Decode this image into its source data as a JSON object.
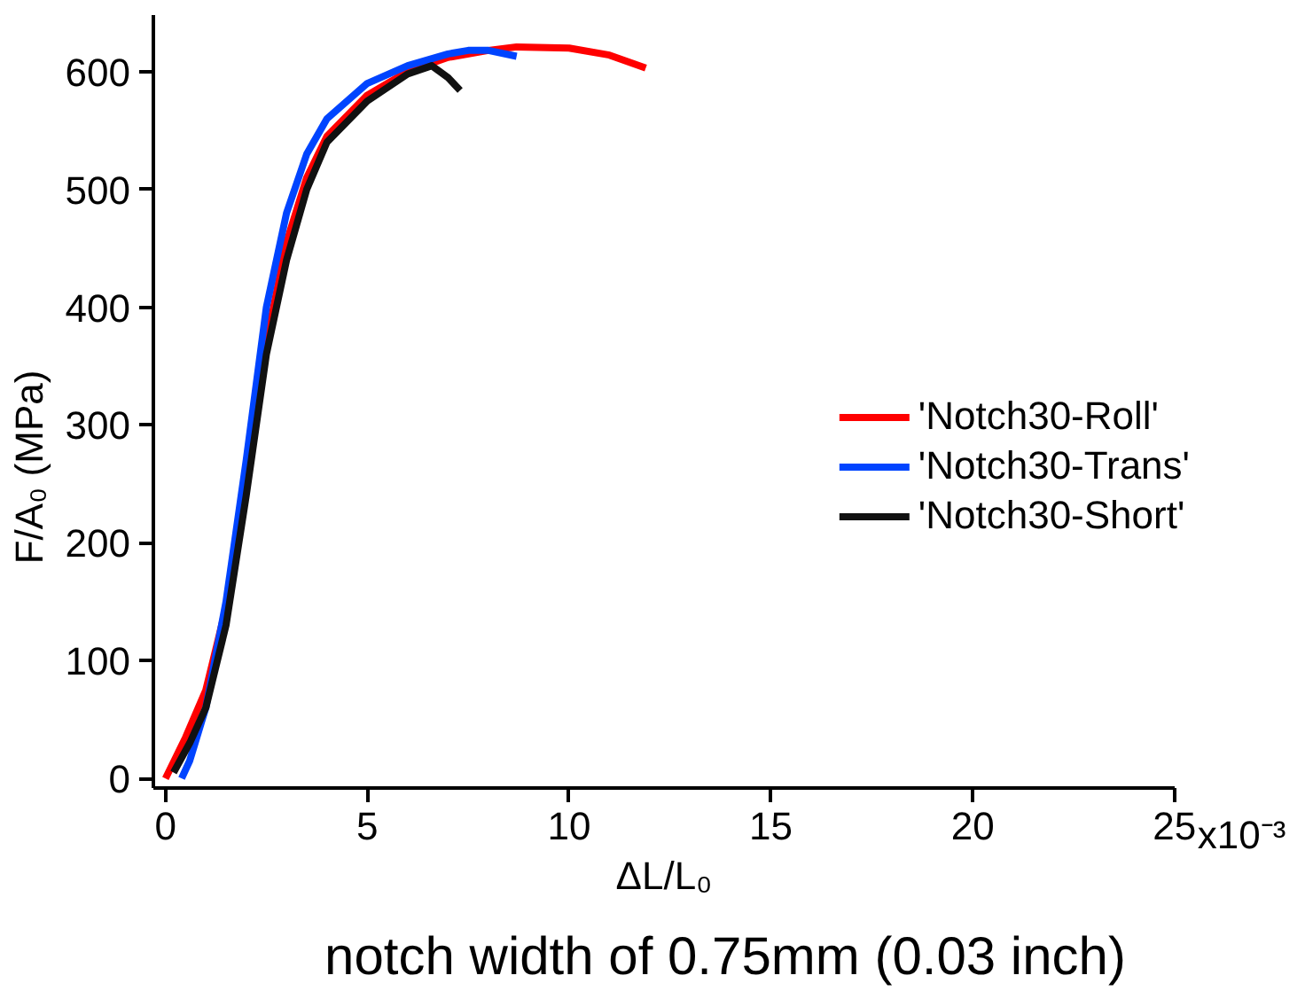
{
  "chart_data": {
    "type": "line",
    "xlabel": "ΔL/L₀",
    "ylabel": "F/A₀ (MPa)",
    "annotations": [
      "notch width of 0.75mm (0.03 inch)",
      "x10⁻³"
    ],
    "xlim": [
      -0.3,
      25
    ],
    "ylim": [
      -8,
      648
    ],
    "xticks": [
      0,
      5,
      10,
      15,
      20,
      25
    ],
    "yticks": [
      0,
      100,
      200,
      300,
      400,
      500,
      600
    ],
    "grid": false,
    "legend": "right",
    "line_style": "solid",
    "marker": "none",
    "series": [
      {
        "name": "'Notch30-Roll'",
        "color": "#ff0000",
        "x": [
          0,
          0.5,
          1,
          1.5,
          2,
          2.5,
          3,
          3.5,
          4,
          5,
          6,
          7,
          8,
          8.7,
          10,
          11,
          11.9
        ],
        "values": [
          0,
          35,
          75,
          145,
          250,
          370,
          455,
          510,
          545,
          580,
          600,
          612,
          618,
          621,
          620,
          614,
          603
        ]
      },
      {
        "name": "'Notch30-Trans'",
        "color": "#0044ff",
        "x": [
          0.4,
          0.6,
          1,
          1.5,
          2,
          2.5,
          3,
          3.5,
          4,
          5,
          6,
          7,
          7.5,
          8,
          8.7
        ],
        "values": [
          0,
          15,
          60,
          150,
          270,
          400,
          480,
          530,
          560,
          590,
          605,
          615,
          618,
          618,
          613
        ]
      },
      {
        "name": "'Notch30-Short'",
        "color": "#111111",
        "x": [
          0.2,
          0.6,
          1,
          1.5,
          2,
          2.5,
          3,
          3.5,
          4,
          5,
          6,
          6.6,
          7,
          7.3
        ],
        "values": [
          5,
          30,
          60,
          130,
          240,
          360,
          440,
          500,
          540,
          575,
          598,
          605,
          595,
          584
        ]
      }
    ]
  }
}
